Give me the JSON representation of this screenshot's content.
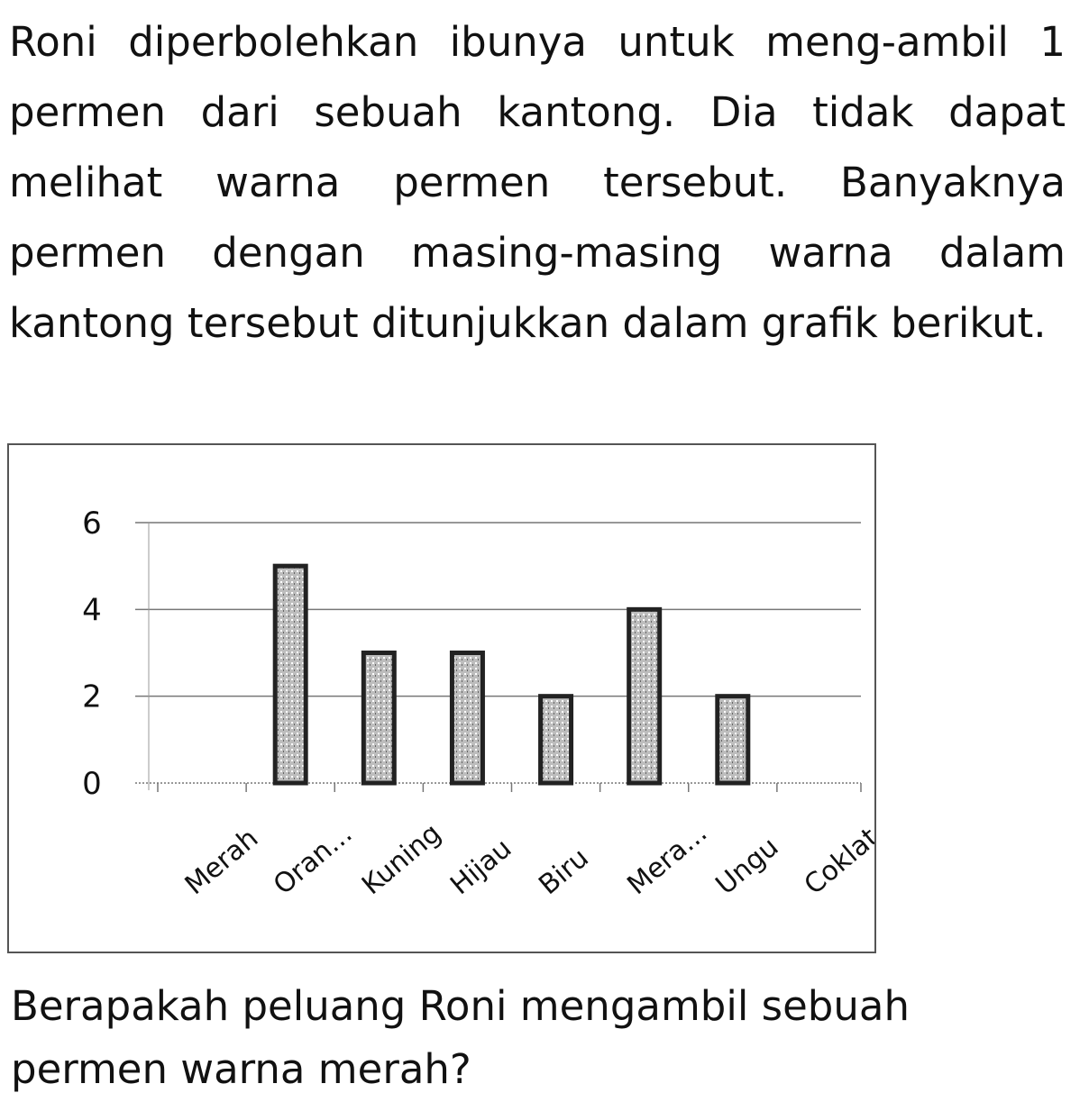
{
  "intro_text": "Roni diperbolehkan ibunya untuk meng-ambil 1 permen dari sebuah kantong. Dia tidak dapat melihat warna permen tersebut. Banyaknya permen dengan masing-masing warna dalam kantong tersebut ditunjukkan dalam grafik berikut.",
  "question_text": "Berapakah peluang Roni mengambil sebuah permen warna merah?",
  "chart_data": {
    "type": "bar",
    "title": "",
    "xlabel": "",
    "ylabel": "",
    "categories": [
      "Merah",
      "Oran...",
      "Kuning",
      "Hijau",
      "Biru",
      "Mera...",
      "Ungu",
      "Coklat"
    ],
    "values": [
      0,
      5,
      3,
      3,
      2,
      4,
      2,
      0
    ],
    "ylim": [
      0,
      6
    ],
    "yticks": [
      "0",
      "2",
      "4",
      "6"
    ],
    "grid": true,
    "bar_color": "#222222",
    "bar_fill_color": "#bdbdbd"
  }
}
